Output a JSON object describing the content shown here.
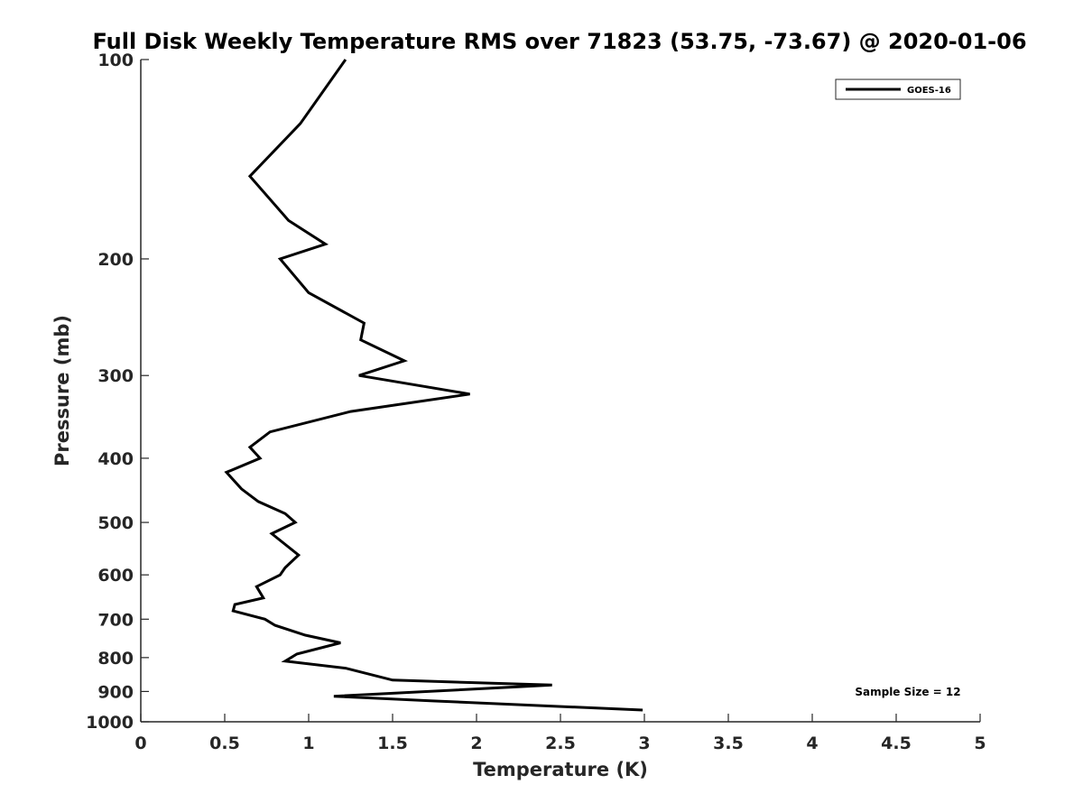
{
  "chart_data": {
    "type": "line",
    "title": "Full Disk Weekly Temperature RMS over 71823 (53.75, -73.67) @ 2020-01-06",
    "xlabel": "Temperature (K)",
    "ylabel": "Pressure (mb)",
    "xlim": [
      0,
      5
    ],
    "ylim": [
      100,
      1000
    ],
    "y_scale": "log",
    "y_reversed": true,
    "x_ticks": [
      "0",
      "0.5",
      "1",
      "1.5",
      "2",
      "2.5",
      "3",
      "3.5",
      "4",
      "4.5",
      "5"
    ],
    "x_tick_values": [
      0,
      0.5,
      1,
      1.5,
      2,
      2.5,
      3,
      3.5,
      4,
      4.5,
      5
    ],
    "y_ticks": [
      "100",
      "200",
      "300",
      "400",
      "500",
      "600",
      "700",
      "800",
      "900",
      "1000"
    ],
    "y_tick_values": [
      100,
      200,
      300,
      400,
      500,
      600,
      700,
      800,
      900,
      1000
    ],
    "grid": false,
    "legend_position": "top-right",
    "series": [
      {
        "name": "GOES-16",
        "color": "#000000",
        "points": [
          [
            1.22,
            100
          ],
          [
            0.95,
            125
          ],
          [
            0.65,
            150
          ],
          [
            0.88,
            175
          ],
          [
            1.1,
            190
          ],
          [
            0.83,
            200
          ],
          [
            1.0,
            225
          ],
          [
            1.33,
            250
          ],
          [
            1.31,
            265
          ],
          [
            1.57,
            285
          ],
          [
            1.3,
            300
          ],
          [
            1.96,
            320
          ],
          [
            1.25,
            340
          ],
          [
            0.77,
            365
          ],
          [
            0.65,
            385
          ],
          [
            0.71,
            400
          ],
          [
            0.51,
            420
          ],
          [
            0.6,
            445
          ],
          [
            0.7,
            465
          ],
          [
            0.86,
            485
          ],
          [
            0.92,
            500
          ],
          [
            0.78,
            520
          ],
          [
            0.94,
            560
          ],
          [
            0.86,
            585
          ],
          [
            0.83,
            600
          ],
          [
            0.69,
            625
          ],
          [
            0.73,
            650
          ],
          [
            0.56,
            665
          ],
          [
            0.55,
            680
          ],
          [
            0.74,
            700
          ],
          [
            0.8,
            715
          ],
          [
            0.98,
            740
          ],
          [
            1.19,
            760
          ],
          [
            0.93,
            790
          ],
          [
            0.86,
            810
          ],
          [
            1.22,
            830
          ],
          [
            1.5,
            865
          ],
          [
            2.45,
            880
          ],
          [
            1.15,
            915
          ],
          [
            1.74,
            930
          ],
          [
            2.99,
            960
          ]
        ]
      }
    ],
    "annotations": [
      "Sample Size = 12"
    ]
  }
}
